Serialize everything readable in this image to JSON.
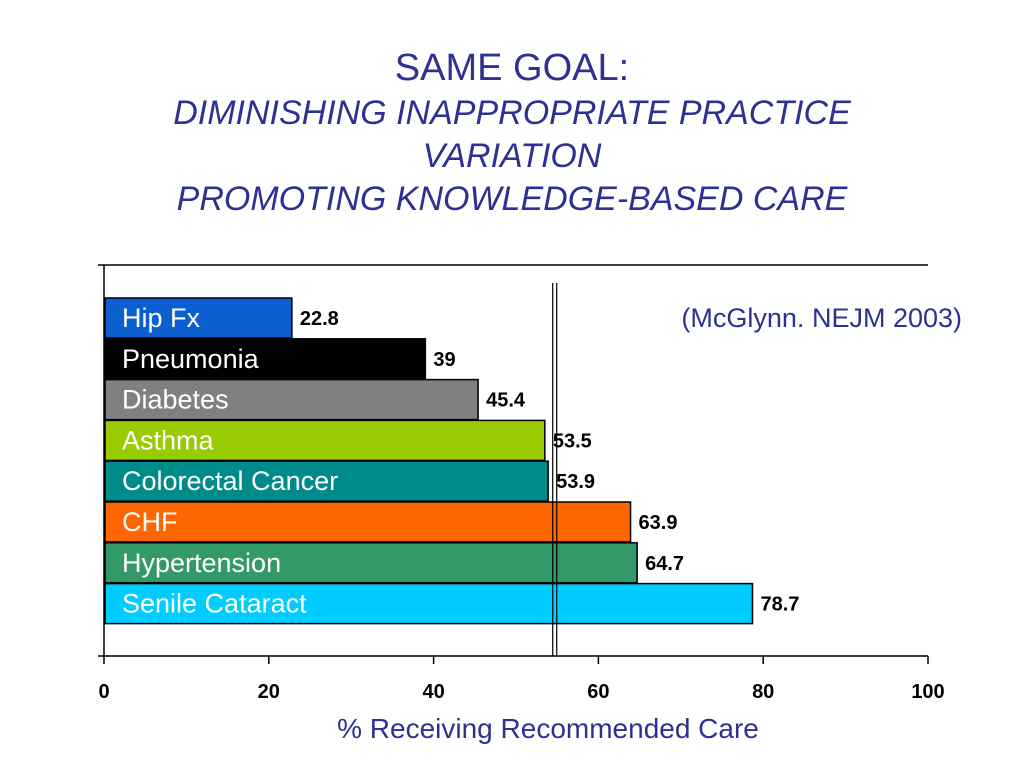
{
  "slide": {
    "title_line1": "SAME GOAL:",
    "title_line2": "DIMINISHING INAPPROPRIATE PRACTICE",
    "title_line3": "VARIATION",
    "title_line4": "PROMOTING KNOWLEDGE-BASED CARE",
    "citation": "(McGlynn. NEJM 2003)"
  },
  "chart_data": {
    "type": "bar",
    "orientation": "horizontal",
    "categories": [
      "Hip Fx",
      "Pneumonia",
      "Diabetes",
      "Asthma",
      "Colorectal Cancer",
      "CHF",
      "Hypertension",
      "Senile Cataract"
    ],
    "values": [
      22.8,
      39,
      45.4,
      53.5,
      53.9,
      63.9,
      64.7,
      78.7
    ],
    "value_labels": [
      "22.8",
      "39",
      "45.4",
      "53.5",
      "53.9",
      "63.9",
      "64.7",
      "78.7"
    ],
    "bar_colors": [
      "#0b5fd1",
      "#000000",
      "#808080",
      "#99cc00",
      "#008b8b",
      "#ff6600",
      "#339966",
      "#00ccff"
    ],
    "xlabel": "% Receiving Recommended Care",
    "ylabel": "",
    "xlim": [
      0,
      100
    ],
    "xticks": [
      "0",
      "20",
      "40",
      "60",
      "80",
      "100"
    ],
    "reference_line": 54.7,
    "grid": false
  }
}
